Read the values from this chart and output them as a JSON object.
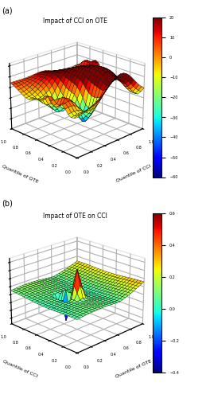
{
  "plot_a": {
    "title": "Impact of CCI on OTE",
    "xlabel": "Quantile of CCI",
    "ylabel": "Quantile of OTE",
    "zlim": [
      -80,
      45
    ],
    "zticks": [
      -80,
      -60,
      -40,
      -20,
      0,
      20,
      40
    ],
    "clim": [
      -60,
      20
    ],
    "cticks": [
      -60,
      -50,
      -40,
      -30,
      -20,
      -10,
      0,
      10,
      20
    ],
    "elev": 22,
    "azim": 225
  },
  "plot_b": {
    "title": "Impact of OTE on CCI",
    "xlabel": "Quantile of OTE",
    "ylabel": "Quantile of CCI",
    "zlim": [
      -0.75,
      0.9
    ],
    "zticks": [
      -0.6,
      -0.4,
      -0.2,
      0,
      0.2,
      0.4,
      0.6,
      0.8
    ],
    "clim": [
      -0.4,
      0.6
    ],
    "cticks": [
      -0.4,
      -0.2,
      0,
      0.2,
      0.4,
      0.6
    ],
    "elev": 22,
    "azim": 225
  },
  "colormap": "jet",
  "grid_n": 25,
  "label_a": "(a)",
  "label_b": "(b)"
}
